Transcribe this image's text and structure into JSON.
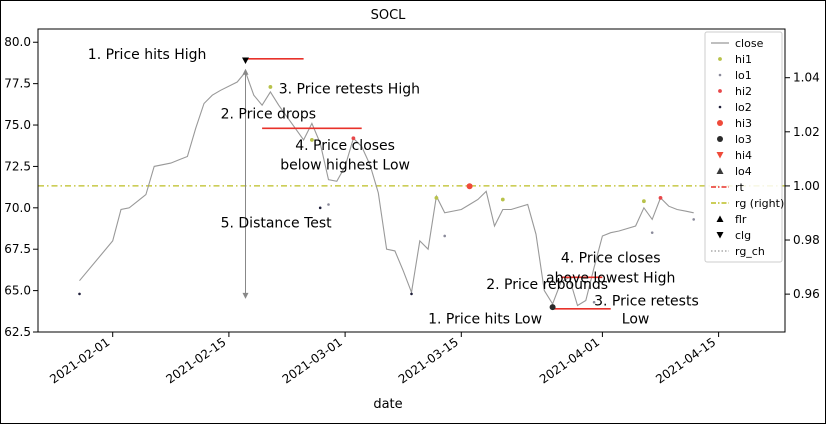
{
  "chart_data": {
    "type": "line",
    "title": "SOCL",
    "xlabel": "date",
    "ylabel": "",
    "ylim": [
      62.5,
      80.8
    ],
    "y2lim": [
      0.946,
      1.058
    ],
    "xlim": [
      "2021-01-23",
      "2021-04-23"
    ],
    "x_ticks": [
      "2021-02-01",
      "2021-02-15",
      "2021-03-01",
      "2021-03-15",
      "2021-04-01",
      "2021-04-15"
    ],
    "y_ticks": [
      62.5,
      65.0,
      67.5,
      70.0,
      72.5,
      75.0,
      77.5,
      80.0
    ],
    "y_tick_labels": [
      "62.5",
      "65.0",
      "67.5",
      "70.0",
      "72.5",
      "75.0",
      "77.5",
      "80.0"
    ],
    "y2_ticks": [
      0.96,
      0.98,
      1.0,
      1.02,
      1.04
    ],
    "y2_tick_labels": [
      "0.96",
      "0.98",
      "1.00",
      "1.02",
      "1.04"
    ],
    "grid": false,
    "legend_position": "top-right",
    "legend": [
      {
        "label": "close",
        "marker": "line",
        "color": "#999999"
      },
      {
        "label": "hi1",
        "marker": "dot",
        "color": "#b8c24a"
      },
      {
        "label": "lo1",
        "marker": "dot-small",
        "color": "#8a8a9a"
      },
      {
        "label": "hi2",
        "marker": "dot",
        "color": "#e8474a"
      },
      {
        "label": "lo2",
        "marker": "dot-small",
        "color": "#1f1f3a"
      },
      {
        "label": "hi3",
        "marker": "circle",
        "color": "#ef4a3a"
      },
      {
        "label": "lo3",
        "marker": "circle",
        "color": "#2a2a2a"
      },
      {
        "label": "hi4",
        "marker": "triangle-down",
        "color": "#ef4a3a"
      },
      {
        "label": "lo4",
        "marker": "triangle-up",
        "color": "#3a3a3a"
      },
      {
        "label": "rt",
        "marker": "dashdot",
        "color": "#e8312a"
      },
      {
        "label": "rg (right)",
        "marker": "dashdot",
        "color": "#bcbd22"
      },
      {
        "label": "flr",
        "marker": "triangle-up",
        "color": "#000000"
      },
      {
        "label": "clg",
        "marker": "triangle-down",
        "color": "#000000"
      },
      {
        "label": "rg_ch",
        "marker": "dotted",
        "color": "#999999"
      }
    ],
    "series": [
      {
        "name": "close",
        "color": "#999999",
        "points": [
          [
            "2021-01-28",
            65.6
          ],
          [
            "2021-02-01",
            68.0
          ],
          [
            "2021-02-02",
            69.9
          ],
          [
            "2021-02-03",
            70.0
          ],
          [
            "2021-02-04",
            70.4
          ],
          [
            "2021-02-05",
            70.8
          ],
          [
            "2021-02-06",
            72.5
          ],
          [
            "2021-02-08",
            72.7
          ],
          [
            "2021-02-09",
            72.9
          ],
          [
            "2021-02-10",
            73.1
          ],
          [
            "2021-02-11",
            74.8
          ],
          [
            "2021-02-12",
            76.3
          ],
          [
            "2021-02-13",
            76.8
          ],
          [
            "2021-02-14",
            77.1
          ],
          [
            "2021-02-16",
            77.6
          ],
          [
            "2021-02-17",
            78.2
          ],
          [
            "2021-02-18",
            76.8
          ],
          [
            "2021-02-19",
            76.2
          ],
          [
            "2021-02-20",
            77.0
          ],
          [
            "2021-02-21",
            76.2
          ],
          [
            "2021-02-22",
            75.5
          ],
          [
            "2021-02-23",
            74.8
          ],
          [
            "2021-02-24",
            74.1
          ],
          [
            "2021-02-25",
            75.1
          ],
          [
            "2021-02-26",
            73.9
          ],
          [
            "2021-02-27",
            71.7
          ],
          [
            "2021-02-28",
            71.6
          ],
          [
            "2021-03-01",
            72.5
          ],
          [
            "2021-03-02",
            74.2
          ],
          [
            "2021-03-03",
            73.7
          ],
          [
            "2021-03-04",
            72.6
          ],
          [
            "2021-03-05",
            70.9
          ],
          [
            "2021-03-06",
            67.5
          ],
          [
            "2021-03-07",
            67.4
          ],
          [
            "2021-03-08",
            66.2
          ],
          [
            "2021-03-09",
            64.9
          ],
          [
            "2021-03-10",
            68.0
          ],
          [
            "2021-03-11",
            67.5
          ],
          [
            "2021-03-12",
            70.7
          ],
          [
            "2021-03-13",
            69.7
          ],
          [
            "2021-03-15",
            69.9
          ],
          [
            "2021-03-16",
            70.2
          ],
          [
            "2021-03-17",
            70.5
          ],
          [
            "2021-03-18",
            71.0
          ],
          [
            "2021-03-19",
            68.9
          ],
          [
            "2021-03-20",
            69.9
          ],
          [
            "2021-03-21",
            69.9
          ],
          [
            "2021-03-23",
            70.2
          ],
          [
            "2021-03-24",
            68.4
          ],
          [
            "2021-03-25",
            65.0
          ],
          [
            "2021-03-26",
            64.2
          ],
          [
            "2021-03-27",
            65.5
          ],
          [
            "2021-03-28",
            65.8
          ],
          [
            "2021-03-29",
            64.1
          ],
          [
            "2021-03-30",
            64.4
          ],
          [
            "2021-03-31",
            66.4
          ],
          [
            "2021-04-01",
            68.3
          ],
          [
            "2021-04-02",
            68.5
          ],
          [
            "2021-04-03",
            68.6
          ],
          [
            "2021-04-05",
            68.9
          ],
          [
            "2021-04-06",
            70.0
          ],
          [
            "2021-04-07",
            69.3
          ],
          [
            "2021-04-08",
            70.6
          ],
          [
            "2021-04-09",
            70.1
          ],
          [
            "2021-04-10",
            69.9
          ],
          [
            "2021-04-11",
            69.8
          ],
          [
            "2021-04-12",
            69.7
          ]
        ]
      }
    ],
    "markers": [
      {
        "name": "hi1",
        "color": "#b8c24a",
        "shape": "dot",
        "points": [
          [
            "2021-02-20",
            77.3
          ],
          [
            "2021-02-25",
            74.1
          ],
          [
            "2021-03-12",
            70.6
          ],
          [
            "2021-03-20",
            70.5
          ],
          [
            "2021-04-06",
            70.4
          ]
        ]
      },
      {
        "name": "lo1",
        "color": "#8a8a9a",
        "shape": "dot-small",
        "points": [
          [
            "2021-02-27",
            70.2
          ],
          [
            "2021-03-13",
            68.3
          ],
          [
            "2021-03-31",
            64.3
          ],
          [
            "2021-04-07",
            68.5
          ],
          [
            "2021-04-12",
            69.3
          ]
        ]
      },
      {
        "name": "hi2",
        "color": "#e8474a",
        "shape": "dot",
        "points": [
          [
            "2021-03-02",
            74.2
          ],
          [
            "2021-04-08",
            70.6
          ]
        ]
      },
      {
        "name": "lo2",
        "color": "#1f1f3a",
        "shape": "dot-small",
        "points": [
          [
            "2021-01-28",
            64.8
          ],
          [
            "2021-02-26",
            70.0
          ],
          [
            "2021-03-09",
            64.8
          ]
        ]
      },
      {
        "name": "hi3",
        "color": "#ef4a3a",
        "shape": "circle",
        "points": [
          [
            "2021-03-16",
            71.3
          ]
        ]
      },
      {
        "name": "lo3",
        "color": "#2a2a2a",
        "shape": "circle",
        "points": [
          [
            "2021-03-26",
            64.0
          ]
        ]
      },
      {
        "name": "clg",
        "color": "#000000",
        "shape": "triangle-down",
        "points": [
          [
            "2021-02-17",
            78.9
          ]
        ]
      }
    ],
    "ref_lines": [
      {
        "name": "rt",
        "color": "#e8312a",
        "x": [
          "2021-02-17",
          "2021-02-24"
        ],
        "y": 79.0
      },
      {
        "name": "rt",
        "color": "#e8312a",
        "x": [
          "2021-02-19",
          "2021-03-03"
        ],
        "y": 74.8
      },
      {
        "name": "rt",
        "color": "#e8312a",
        "x": [
          "2021-03-27",
          "2021-04-01"
        ],
        "y": 65.8
      },
      {
        "name": "rt",
        "color": "#e8312a",
        "x": [
          "2021-03-26",
          "2021-04-02"
        ],
        "y": 63.9
      }
    ],
    "rg_right": {
      "name": "rg (right)",
      "color": "#bcbd22",
      "value": 1.0
    },
    "distance_arrow": {
      "x": "2021-02-17",
      "y_from": 78.4,
      "y_to": 64.5
    },
    "annotations": [
      {
        "text": "1. Price hits High",
        "x": "2021-01-29",
        "y": 79.0,
        "align": "start"
      },
      {
        "text": "3. Price retests High",
        "x": "2021-02-21",
        "y": 76.9,
        "align": "start"
      },
      {
        "text": "2. Price drops",
        "x": "2021-02-14",
        "y": 75.4,
        "align": "start"
      },
      {
        "text": "4. Price closes",
        "x": "2021-03-01",
        "y": 73.5,
        "align": "middle"
      },
      {
        "text": "below highest Low",
        "x": "2021-03-01",
        "y": 72.3,
        "align": "middle"
      },
      {
        "text": "5. Distance Test",
        "x": "2021-02-14",
        "y": 68.8,
        "align": "start"
      },
      {
        "text": "4. Price closes",
        "x": "2021-04-02",
        "y": 66.7,
        "align": "middle"
      },
      {
        "text": "above lowest High",
        "x": "2021-04-02",
        "y": 65.5,
        "align": "middle"
      },
      {
        "text": "2. Price rebounds",
        "x": "2021-03-18",
        "y": 65.1,
        "align": "start"
      },
      {
        "text": "3. Price retests",
        "x": "2021-03-31",
        "y": 64.1,
        "align": "start"
      },
      {
        "text": "Low",
        "x": "2021-04-05",
        "y": 63.0,
        "align": "middle"
      },
      {
        "text": "1. Price hits Low",
        "x": "2021-03-11",
        "y": 63.0,
        "align": "start"
      }
    ]
  }
}
